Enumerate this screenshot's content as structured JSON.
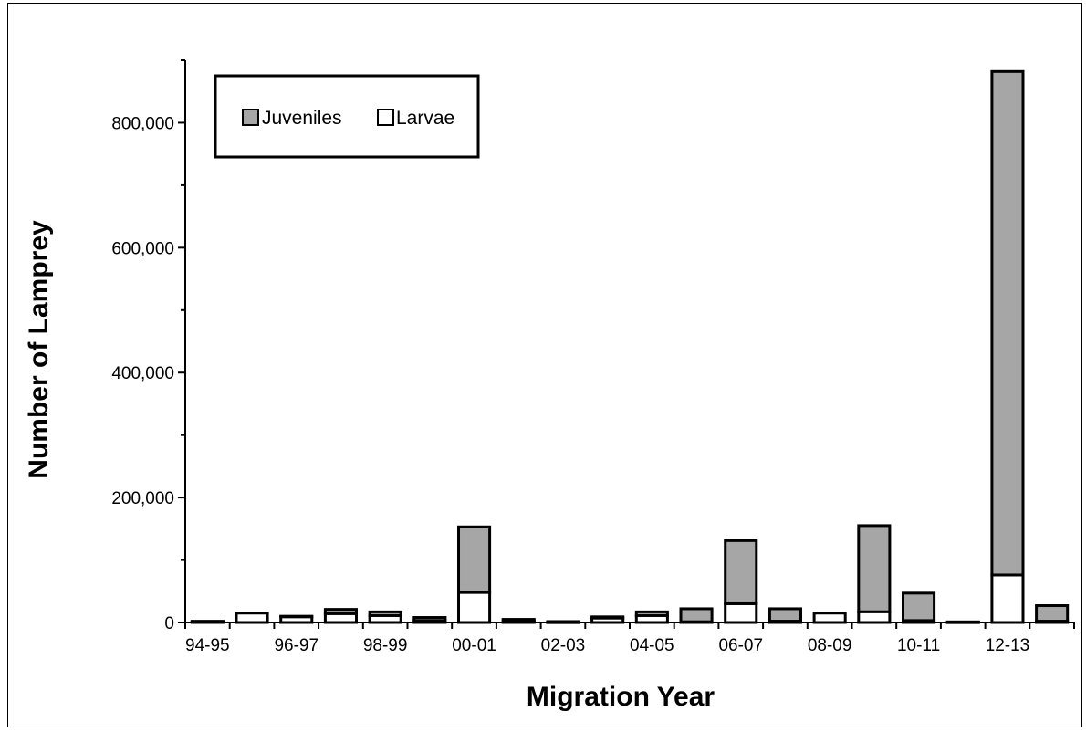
{
  "chart_data": {
    "type": "bar",
    "stacked": true,
    "xlabel": "Migration Year",
    "ylabel": "Number of  Lamprey",
    "ylim": [
      0,
      900000
    ],
    "yticks": [
      0,
      200000,
      400000,
      600000,
      800000
    ],
    "ytick_labels": [
      "0",
      "200,000",
      "400,000",
      "600,000",
      "800,000"
    ],
    "categories": [
      "94-95",
      "95-96",
      "96-97",
      "97-98",
      "98-99",
      "99-00",
      "00-01",
      "01-02",
      "02-03",
      "03-04",
      "04-05",
      "05-06",
      "06-07",
      "07-08",
      "08-09",
      "09-10",
      "10-11",
      "11-12",
      "12-13",
      "13-14"
    ],
    "xtick_labels": [
      "94-95",
      "",
      "96-97",
      "",
      "98-99",
      "",
      "00-01",
      "",
      "02-03",
      "",
      "04-05",
      "",
      "06-07",
      "",
      "08-09",
      "",
      "10-11",
      "",
      "12-13",
      ""
    ],
    "series": [
      {
        "name": "Larvae",
        "color": "#ffffff",
        "values": [
          1000,
          15000,
          9000,
          14000,
          11000,
          3000,
          48000,
          3000,
          500,
          7000,
          11000,
          1000,
          30000,
          2000,
          15000,
          17000,
          3000,
          500,
          76000,
          2000
        ]
      },
      {
        "name": "Juveniles",
        "color": "#a6a6a6",
        "values": [
          1000,
          0,
          1000,
          7000,
          6000,
          5000,
          105000,
          2000,
          1000,
          2000,
          6000,
          21000,
          101000,
          20000,
          0,
          138000,
          44000,
          500,
          806000,
          25000
        ]
      }
    ],
    "legend": {
      "position": "top-left",
      "order": [
        "Juveniles",
        "Larvae"
      ]
    },
    "grid": false
  }
}
